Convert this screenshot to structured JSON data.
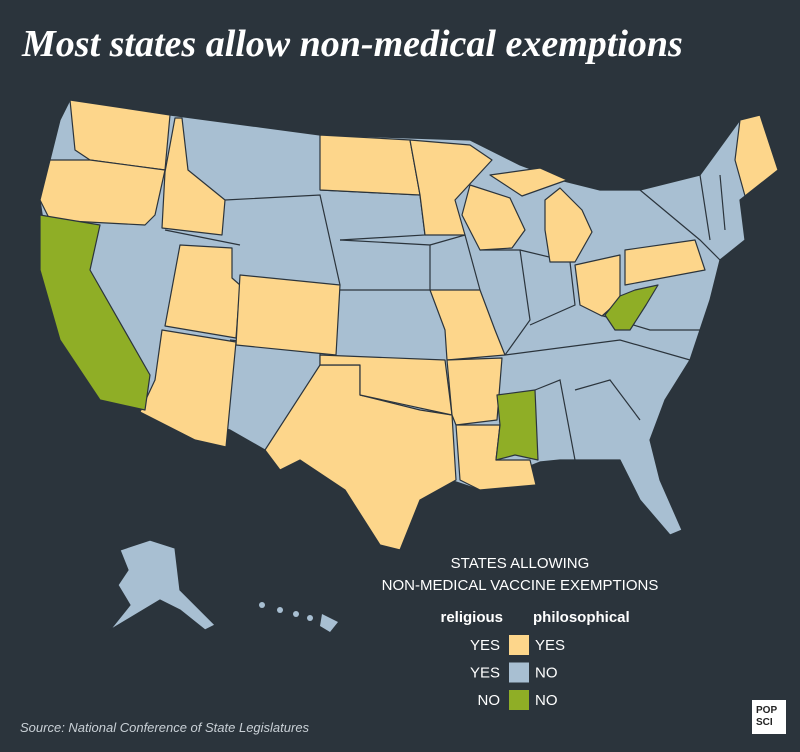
{
  "title": "Most states allow non-medical exemptions",
  "legend": {
    "title": [
      "STATES ALLOWING",
      "NON-MEDICAL VACCINE EXEMPTIONS"
    ],
    "columns": [
      "religious",
      "philosophical"
    ],
    "rows": [
      {
        "religious": "YES",
        "philosophical": "YES",
        "color": "#fdd68b"
      },
      {
        "religious": "YES",
        "philosophical": "NO",
        "color": "#a8bfd2"
      },
      {
        "religious": "NO",
        "philosophical": "NO",
        "color": "#8fae26"
      }
    ]
  },
  "source": "Source: National Conference of State Legislatures",
  "logo": [
    "POP",
    "SCI"
  ]
}
